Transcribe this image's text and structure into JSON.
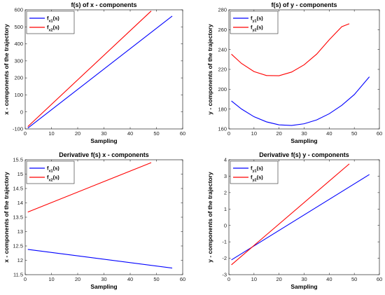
{
  "chart_data": [
    {
      "type": "line",
      "title": "f(s) of x - components",
      "xlabel": "Sampling",
      "ylabel": "x - components of the trajectory",
      "xlim": [
        0,
        60
      ],
      "ylim": [
        -100,
        600
      ],
      "xticks": [
        "0",
        "10",
        "20",
        "30",
        "40",
        "50",
        "60"
      ],
      "yticks": [
        "-100",
        "0",
        "100",
        "200",
        "300",
        "400",
        "500",
        "600"
      ],
      "legend_position": "top-left",
      "grid": false,
      "series": [
        {
          "name": "f",
          "sub": "x1",
          "suffix": "(s)",
          "color": "#0000ff",
          "x": [
            1,
            56
          ],
          "y": [
            -95,
            563
          ]
        },
        {
          "name": "f",
          "sub": "x2",
          "suffix": "(s)",
          "color": "#ff0000",
          "x": [
            1,
            48
          ],
          "y": [
            -86,
            593
          ]
        }
      ]
    },
    {
      "type": "line",
      "title": "f(s) of y - components",
      "xlabel": "Sampling",
      "ylabel": "y - components of the trajectory",
      "xlim": [
        0,
        60
      ],
      "ylim": [
        160,
        280
      ],
      "xticks": [
        "0",
        "10",
        "20",
        "30",
        "40",
        "50",
        "60"
      ],
      "yticks": [
        "160",
        "180",
        "200",
        "220",
        "240",
        "260",
        "280"
      ],
      "legend_position": "top-left",
      "grid": false,
      "series": [
        {
          "name": "f",
          "sub": "y1",
          "suffix": "(s)",
          "color": "#0000ff",
          "x": [
            1,
            5,
            10,
            15,
            20,
            25,
            30,
            35,
            40,
            45,
            50,
            56
          ],
          "y": [
            188.2,
            180.1,
            172.3,
            167.1,
            164.1,
            163.5,
            165.2,
            169.1,
            175.3,
            183.8,
            194.6,
            212.5
          ]
        },
        {
          "name": "f",
          "sub": "y2",
          "suffix": "(s)",
          "color": "#ff0000",
          "x": [
            1,
            5,
            10,
            15,
            20,
            25,
            30,
            35,
            40,
            45,
            48
          ],
          "y": [
            235.3,
            226.0,
            217.8,
            213.8,
            213.6,
            217.3,
            224.6,
            235.4,
            249.8,
            263.0,
            266.0
          ]
        }
      ]
    },
    {
      "type": "line",
      "title": "Derivative f(s) x - components",
      "xlabel": "Sampling",
      "ylabel": "x - components of the trajectory",
      "xlim": [
        0,
        60
      ],
      "ylim": [
        11.5,
        15.5
      ],
      "xticks": [
        "0",
        "10",
        "20",
        "30",
        "40",
        "50",
        "60"
      ],
      "yticks": [
        "11.5",
        "12",
        "12.5",
        "13",
        "13.5",
        "14",
        "14.5",
        "15",
        "15.5"
      ],
      "legend_position": "top-left",
      "grid": false,
      "series": [
        {
          "name": "f",
          "sub": "x1",
          "suffix": "(s)",
          "color": "#0000ff",
          "x": [
            1,
            56
          ],
          "y": [
            12.38,
            11.73
          ]
        },
        {
          "name": "f",
          "sub": "x2",
          "suffix": "(s)",
          "color": "#ff0000",
          "x": [
            1,
            48
          ],
          "y": [
            13.68,
            15.4
          ]
        }
      ]
    },
    {
      "type": "line",
      "title": "Derivative f(s) y - components",
      "xlabel": "Sampling",
      "ylabel": "y - components of the trajectory",
      "xlim": [
        0,
        60
      ],
      "ylim": [
        -3,
        4
      ],
      "xticks": [
        "0",
        "10",
        "20",
        "30",
        "40",
        "50",
        "60"
      ],
      "yticks": [
        "-3",
        "-2",
        "-1",
        "0",
        "1",
        "2",
        "3",
        "4"
      ],
      "legend_position": "top-left",
      "grid": false,
      "series": [
        {
          "name": "f",
          "sub": "y1",
          "suffix": "(s)",
          "color": "#0000ff",
          "x": [
            1,
            56
          ],
          "y": [
            -2.1,
            3.1
          ]
        },
        {
          "name": "f",
          "sub": "y2",
          "suffix": "(s)",
          "color": "#ff0000",
          "x": [
            1,
            48
          ],
          "y": [
            -2.4,
            3.75
          ]
        }
      ]
    }
  ]
}
